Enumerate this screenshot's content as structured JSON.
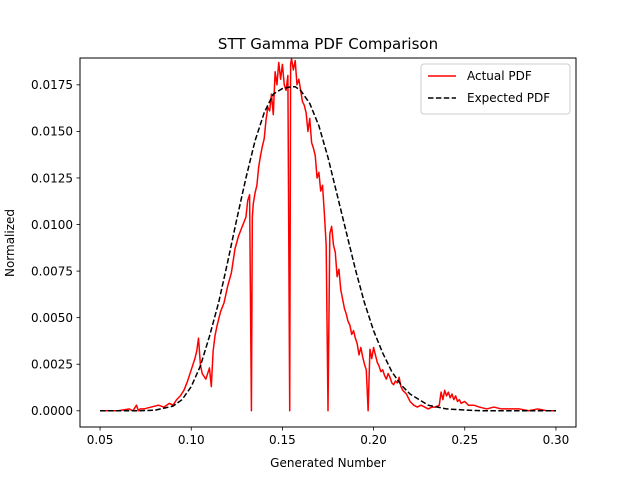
{
  "chart_data": {
    "type": "line",
    "title": "STT Gamma PDF Comparison",
    "xlabel": "Generated Number",
    "ylabel": "Normalized",
    "xlim": [
      0.039,
      0.311
    ],
    "ylim": [
      -0.00087,
      0.01894
    ],
    "xticks": [
      0.05,
      0.1,
      0.15,
      0.2,
      0.25,
      0.3
    ],
    "xtick_labels": [
      "0.05",
      "0.10",
      "0.15",
      "0.20",
      "0.25",
      "0.30"
    ],
    "yticks": [
      0.0,
      0.0025,
      0.005,
      0.0075,
      0.01,
      0.0125,
      0.015,
      0.0175
    ],
    "ytick_labels": [
      "0.0000",
      "0.0025",
      "0.0050",
      "0.0075",
      "0.0100",
      "0.0125",
      "0.0150",
      "0.0175"
    ],
    "grid": false,
    "legend_position": "top-right",
    "series": [
      {
        "name": "Actual PDF",
        "color": "#ff0000",
        "style": "solid",
        "x": [
          0.05,
          0.06,
          0.066,
          0.068,
          0.07,
          0.071,
          0.072,
          0.074,
          0.078,
          0.082,
          0.085,
          0.088,
          0.09,
          0.092,
          0.094,
          0.096,
          0.098,
          0.1,
          0.102,
          0.103,
          0.104,
          0.105,
          0.106,
          0.108,
          0.11,
          0.111,
          0.112,
          0.113,
          0.114,
          0.116,
          0.118,
          0.12,
          0.122,
          0.124,
          0.126,
          0.128,
          0.13,
          0.131,
          0.132,
          0.133,
          0.1335,
          0.134,
          0.135,
          0.136,
          0.137,
          0.138,
          0.139,
          0.14,
          0.141,
          0.142,
          0.143,
          0.144,
          0.145,
          0.146,
          0.147,
          0.148,
          0.149,
          0.15,
          0.151,
          0.152,
          0.153,
          0.154,
          0.1545,
          0.155,
          0.156,
          0.157,
          0.158,
          0.159,
          0.16,
          0.161,
          0.162,
          0.163,
          0.164,
          0.165,
          0.166,
          0.167,
          0.168,
          0.169,
          0.17,
          0.171,
          0.172,
          0.173,
          0.174,
          0.175,
          0.176,
          0.177,
          0.178,
          0.179,
          0.18,
          0.181,
          0.182,
          0.183,
          0.184,
          0.185,
          0.186,
          0.187,
          0.188,
          0.189,
          0.19,
          0.191,
          0.192,
          0.193,
          0.194,
          0.195,
          0.196,
          0.197,
          0.198,
          0.199,
          0.2,
          0.201,
          0.202,
          0.203,
          0.204,
          0.205,
          0.206,
          0.207,
          0.208,
          0.209,
          0.21,
          0.211,
          0.212,
          0.213,
          0.214,
          0.215,
          0.216,
          0.218,
          0.22,
          0.222,
          0.224,
          0.226,
          0.228,
          0.23,
          0.232,
          0.234,
          0.236,
          0.237,
          0.238,
          0.239,
          0.24,
          0.241,
          0.242,
          0.243,
          0.244,
          0.245,
          0.246,
          0.247,
          0.248,
          0.25,
          0.252,
          0.255,
          0.258,
          0.262,
          0.266,
          0.27,
          0.275,
          0.28,
          0.285,
          0.29,
          0.295,
          0.3
        ],
        "y": [
          0.0,
          0.0,
          0.0001,
          0.0,
          0.0003,
          0.0,
          0.0001,
          0.0001,
          0.0002,
          0.0003,
          0.0002,
          0.0004,
          0.0003,
          0.0006,
          0.0008,
          0.0011,
          0.0016,
          0.0022,
          0.0028,
          0.0032,
          0.0039,
          0.0025,
          0.002,
          0.0017,
          0.0023,
          0.0013,
          0.0032,
          0.004,
          0.0045,
          0.0053,
          0.0058,
          0.0067,
          0.0074,
          0.0087,
          0.0094,
          0.0099,
          0.0104,
          0.0113,
          0.0116,
          0.0,
          0.0104,
          0.0111,
          0.0117,
          0.0121,
          0.0131,
          0.0137,
          0.0142,
          0.0146,
          0.0156,
          0.0163,
          0.0161,
          0.017,
          0.0159,
          0.0182,
          0.0175,
          0.0187,
          0.0178,
          0.0186,
          0.0175,
          0.0172,
          0.018,
          0.0,
          0.0186,
          0.0189,
          0.0183,
          0.0188,
          0.0175,
          0.0178,
          0.0172,
          0.0166,
          0.0164,
          0.016,
          0.015,
          0.0157,
          0.0144,
          0.0141,
          0.0137,
          0.0125,
          0.0128,
          0.0118,
          0.0121,
          0.0106,
          0.0089,
          0.0,
          0.0095,
          0.0099,
          0.0089,
          0.0085,
          0.0072,
          0.0076,
          0.0065,
          0.006,
          0.0055,
          0.0052,
          0.0048,
          0.0046,
          0.0041,
          0.0043,
          0.0039,
          0.0036,
          0.003,
          0.0034,
          0.0029,
          0.0025,
          0.0022,
          0.0,
          0.0033,
          0.0028,
          0.0034,
          0.003,
          0.0026,
          0.0024,
          0.0021,
          0.0022,
          0.0019,
          0.0017,
          0.002,
          0.0018,
          0.0015,
          0.0014,
          0.0016,
          0.0015,
          0.0018,
          0.0013,
          0.0011,
          0.0009,
          0.0005,
          0.0003,
          0.0002,
          0.0003,
          0.0002,
          0.0001,
          0.0002,
          0.0002,
          0.0003,
          0.001,
          0.0006,
          0.0011,
          0.0008,
          0.001,
          0.0007,
          0.0009,
          0.0006,
          0.0008,
          0.0005,
          0.0006,
          0.0004,
          0.0005,
          0.0003,
          0.0003,
          0.0002,
          0.0001,
          0.0002,
          0.0001,
          0.0001,
          0.0001,
          0.0,
          0.0001,
          0.0,
          0.0
        ]
      },
      {
        "name": "Expected PDF",
        "color": "#000000",
        "style": "dashed",
        "x": [
          0.05,
          0.06,
          0.07,
          0.08,
          0.09,
          0.095,
          0.1,
          0.105,
          0.11,
          0.115,
          0.12,
          0.125,
          0.13,
          0.135,
          0.14,
          0.145,
          0.15,
          0.155,
          0.157,
          0.16,
          0.165,
          0.17,
          0.175,
          0.18,
          0.185,
          0.19,
          0.195,
          0.2,
          0.205,
          0.21,
          0.215,
          0.22,
          0.225,
          0.23,
          0.24,
          0.25,
          0.26,
          0.27,
          0.28,
          0.29,
          0.3
        ],
        "y": [
          0.0,
          0.0,
          0.0,
          3e-05,
          0.00025,
          0.0006,
          0.0013,
          0.0024,
          0.004,
          0.0058,
          0.008,
          0.0103,
          0.0125,
          0.0145,
          0.016,
          0.017,
          0.0173,
          0.0174,
          0.0174,
          0.0172,
          0.0165,
          0.0153,
          0.0136,
          0.0116,
          0.0096,
          0.0076,
          0.0058,
          0.0043,
          0.0031,
          0.0021,
          0.0014,
          0.0009,
          0.0006,
          0.0003,
          0.0001,
          4e-05,
          0.0,
          0.0,
          0.0,
          0.0,
          0.0
        ]
      }
    ]
  }
}
